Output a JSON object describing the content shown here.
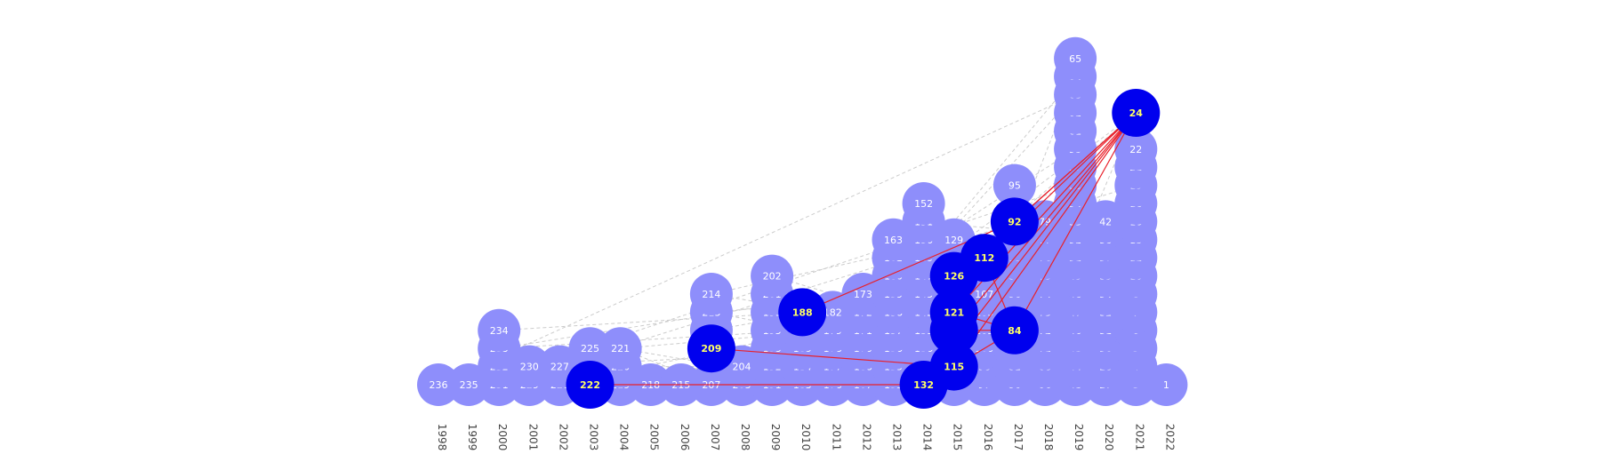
{
  "chart_data": {
    "type": "scatter",
    "x_ticks": [
      "1998",
      "1999",
      "2000",
      "2001",
      "2002",
      "2003",
      "2004",
      "2005",
      "2006",
      "2007",
      "2008",
      "2009",
      "2010",
      "2011",
      "2012",
      "2013",
      "2014",
      "2015",
      "2016",
      "2017",
      "2018",
      "2019",
      "2020",
      "2021",
      "2022"
    ],
    "grid": false,
    "legend": "none",
    "columns": [
      {
        "year": "1998",
        "ids": [
          236
        ]
      },
      {
        "year": "1999",
        "ids": [
          235
        ]
      },
      {
        "year": "2000",
        "ids": [
          231,
          232,
          233,
          234
        ]
      },
      {
        "year": "2001",
        "ids": [
          229,
          230
        ]
      },
      {
        "year": "2002",
        "ids": [
          226,
          227
        ]
      },
      {
        "year": "2003",
        "ids": [
          222,
          "",
          225
        ]
      },
      {
        "year": "2004",
        "ids": [
          219,
          220,
          221
        ]
      },
      {
        "year": "2005",
        "ids": [
          218
        ]
      },
      {
        "year": "2006",
        "ids": [
          215
        ]
      },
      {
        "year": "2007",
        "ids": [
          207,
          "",
          209,
          211,
          213,
          214
        ]
      },
      {
        "year": "2008",
        "ids": [
          203,
          204
        ]
      },
      {
        "year": "2009",
        "ids": [
          191,
          192,
          193,
          195,
          199,
          201,
          202
        ]
      },
      {
        "year": "2010",
        "ids": [
          183,
          184,
          185,
          186,
          188
        ]
      },
      {
        "year": "2011",
        "ids": [
          176,
          177,
          178,
          179,
          182
        ]
      },
      {
        "year": "2012",
        "ids": [
          167,
          168,
          170,
          171,
          172,
          173
        ]
      },
      {
        "year": "2013",
        "ids": [
          153,
          155,
          156,
          157,
          158,
          159,
          160,
          162,
          163
        ]
      },
      {
        "year": "2014",
        "ids": [
          132,
          "",
          136,
          139,
          142,
          145,
          147,
          149,
          150,
          151,
          152
        ]
      },
      {
        "year": "2015",
        "ids": [
          113,
          115,
          "",
          118,
          121,
          "",
          126,
          128,
          129
        ]
      },
      {
        "year": "2016",
        "ids": [
          97,
          98,
          100,
          103,
          105,
          107,
          "",
          112
        ]
      },
      {
        "year": "2017",
        "ids": [
          80,
          81,
          82,
          84,
          "",
          86,
          87,
          89,
          90,
          92,
          "",
          95
        ]
      },
      {
        "year": "2018",
        "ids": [
          66,
          68,
          71,
          72,
          73,
          74,
          75,
          76,
          77,
          79
        ]
      },
      {
        "year": "2019",
        "ids": [
          43,
          44,
          45,
          46,
          47,
          48,
          49,
          51,
          52,
          53,
          54,
          56,
          57,
          59,
          61,
          62,
          63,
          64,
          65
        ]
      },
      {
        "year": "2020",
        "ids": [
          27,
          28,
          30,
          31,
          32,
          34,
          35,
          37,
          38,
          42
        ]
      },
      {
        "year": "2021",
        "ids": [
          3,
          4,
          5,
          6,
          7,
          8,
          10,
          12,
          15,
          16,
          18,
          19,
          21,
          22,
          "",
          24
        ]
      },
      {
        "year": "2022",
        "ids": [
          1
        ]
      }
    ],
    "highlighted": [
      24,
      84,
      92,
      112,
      115,
      118,
      121,
      126,
      132,
      188,
      209,
      222
    ],
    "highlighted_links": [
      [
        24,
        92
      ],
      [
        24,
        126
      ],
      [
        24,
        112
      ],
      [
        24,
        118
      ],
      [
        24,
        121
      ],
      [
        24,
        84
      ],
      [
        24,
        115
      ],
      [
        24,
        132
      ],
      [
        92,
        188
      ],
      [
        84,
        112
      ],
      [
        84,
        118
      ],
      [
        84,
        121
      ],
      [
        84,
        115
      ],
      [
        118,
        115
      ],
      [
        115,
        209
      ],
      [
        132,
        222
      ]
    ],
    "colors": {
      "node": "#8e8efb",
      "highlight_node": "#0000ee",
      "node_text": "#ffffff",
      "highlight_text": "#ffff66",
      "highlight_link": "#e8202a",
      "background_link": "#cccccc",
      "tick_text": "#444444"
    }
  }
}
